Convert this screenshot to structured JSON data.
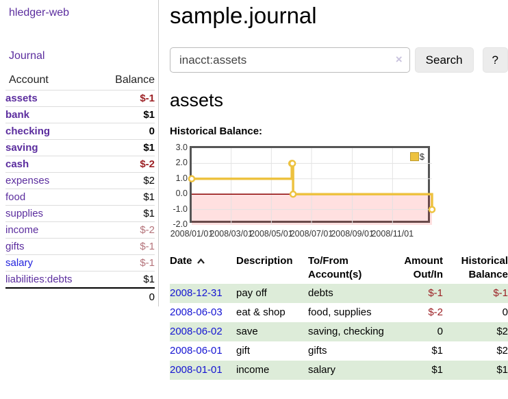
{
  "colors": {
    "link_purple": "#5b2d9e",
    "link_blue": "#2222dd",
    "date_link_blue": "#1414d2",
    "negative_strong": "#9c2024",
    "negative_faded": "#b4737a",
    "row_green": "#ddecd9",
    "series_yellow": "#edc240",
    "zero_line": "#8b0000",
    "negative_region": "rgba(255,0,0,0.12)",
    "grid": "#e3e3e3",
    "chart_border": "#555555"
  },
  "sidebar": {
    "brand": "hledger-web",
    "journal_link": "Journal",
    "accounts_table": {
      "col_account": "Account",
      "col_balance": "Balance",
      "accounts": [
        {
          "name": "assets",
          "indent": 1,
          "bold": true,
          "link": "purple",
          "balance": "$-1",
          "balance_style": "neg"
        },
        {
          "name": "bank",
          "indent": 2,
          "bold": true,
          "link": "purple",
          "balance": "$1",
          "balance_style": "pos"
        },
        {
          "name": "checking",
          "indent": 3,
          "bold": true,
          "link": "purple",
          "balance": "0",
          "balance_style": "pos"
        },
        {
          "name": "saving",
          "indent": 3,
          "bold": true,
          "link": "purple",
          "balance": "$1",
          "balance_style": "pos"
        },
        {
          "name": "cash",
          "indent": 2,
          "bold": true,
          "link": "purple",
          "balance": "$-2",
          "balance_style": "neg"
        },
        {
          "name": "expenses",
          "indent": 1,
          "bold": false,
          "link": "purple",
          "balance": "$2",
          "balance_style": "pos"
        },
        {
          "name": "food",
          "indent": 2,
          "bold": false,
          "link": "purple",
          "balance": "$1",
          "balance_style": "pos"
        },
        {
          "name": "supplies",
          "indent": 2,
          "bold": false,
          "link": "purple",
          "balance": "$1",
          "balance_style": "pos"
        },
        {
          "name": "income",
          "indent": 1,
          "bold": false,
          "link": "purple",
          "balance": "$-2",
          "balance_style": "negfade"
        },
        {
          "name": "gifts",
          "indent": 2,
          "bold": false,
          "link": "purple",
          "balance": "$-1",
          "balance_style": "negfade"
        },
        {
          "name": "salary",
          "indent": 2,
          "bold": false,
          "link": "blue",
          "balance": "$-1",
          "balance_style": "negfade"
        },
        {
          "name": "liabilities:debts",
          "indent": 1,
          "bold": false,
          "link": "purple",
          "balance": "$1",
          "balance_style": "pos"
        }
      ],
      "total": "0"
    }
  },
  "main": {
    "title": "sample.journal",
    "search": {
      "value": "inacct:assets",
      "clear_icon": "×",
      "button_label": "Search",
      "help_label": "?"
    },
    "account_heading": "assets",
    "chart_heading": "Historical Balance:"
  },
  "chart_data": {
    "type": "line",
    "step": true,
    "title": "Historical Balance",
    "series": [
      {
        "name": "$",
        "color": "#edc240",
        "points": [
          [
            "2008-01-01",
            1
          ],
          [
            "2008-06-01",
            2
          ],
          [
            "2008-06-02",
            2
          ],
          [
            "2008-06-03",
            0
          ],
          [
            "2008-12-31",
            -1
          ]
        ]
      }
    ],
    "x_range": [
      "2008-01-01",
      "2008-12-31"
    ],
    "ylim": [
      -2,
      3
    ],
    "y_ticks": [
      3.0,
      2.0,
      1.0,
      0.0,
      -1.0,
      -2.0
    ],
    "x_ticks": [
      "2008/01/01",
      "2008/03/01",
      "2008/05/01",
      "2008/07/01",
      "2008/09/01",
      "2008/11/01"
    ],
    "grid": true,
    "legend_position": "top-right",
    "legend_label": "$",
    "negative_region_shaded": true
  },
  "register": {
    "headers": {
      "date": "Date",
      "description": "Description",
      "tofrom": "To/From Account(s)",
      "amount": "Amount Out/In",
      "balance": "Historical Balance"
    },
    "rows": [
      {
        "date": "2008-12-31",
        "description": "pay off",
        "accounts": "debts",
        "amount": "$-1",
        "amount_neg": true,
        "balance": "$-1",
        "balance_neg": true,
        "green": true
      },
      {
        "date": "2008-06-03",
        "description": "eat & shop",
        "accounts": "food, supplies",
        "amount": "$-2",
        "amount_neg": true,
        "balance": "0",
        "balance_neg": false,
        "green": false
      },
      {
        "date": "2008-06-02",
        "description": "save",
        "accounts": "saving, checking",
        "amount": "0",
        "amount_neg": false,
        "balance": "$2",
        "balance_neg": false,
        "green": true
      },
      {
        "date": "2008-06-01",
        "description": "gift",
        "accounts": "gifts",
        "amount": "$1",
        "amount_neg": false,
        "balance": "$2",
        "balance_neg": false,
        "green": false
      },
      {
        "date": "2008-01-01",
        "description": "income",
        "accounts": "salary",
        "amount": "$1",
        "amount_neg": false,
        "balance": "$1",
        "balance_neg": false,
        "green": true
      }
    ]
  }
}
